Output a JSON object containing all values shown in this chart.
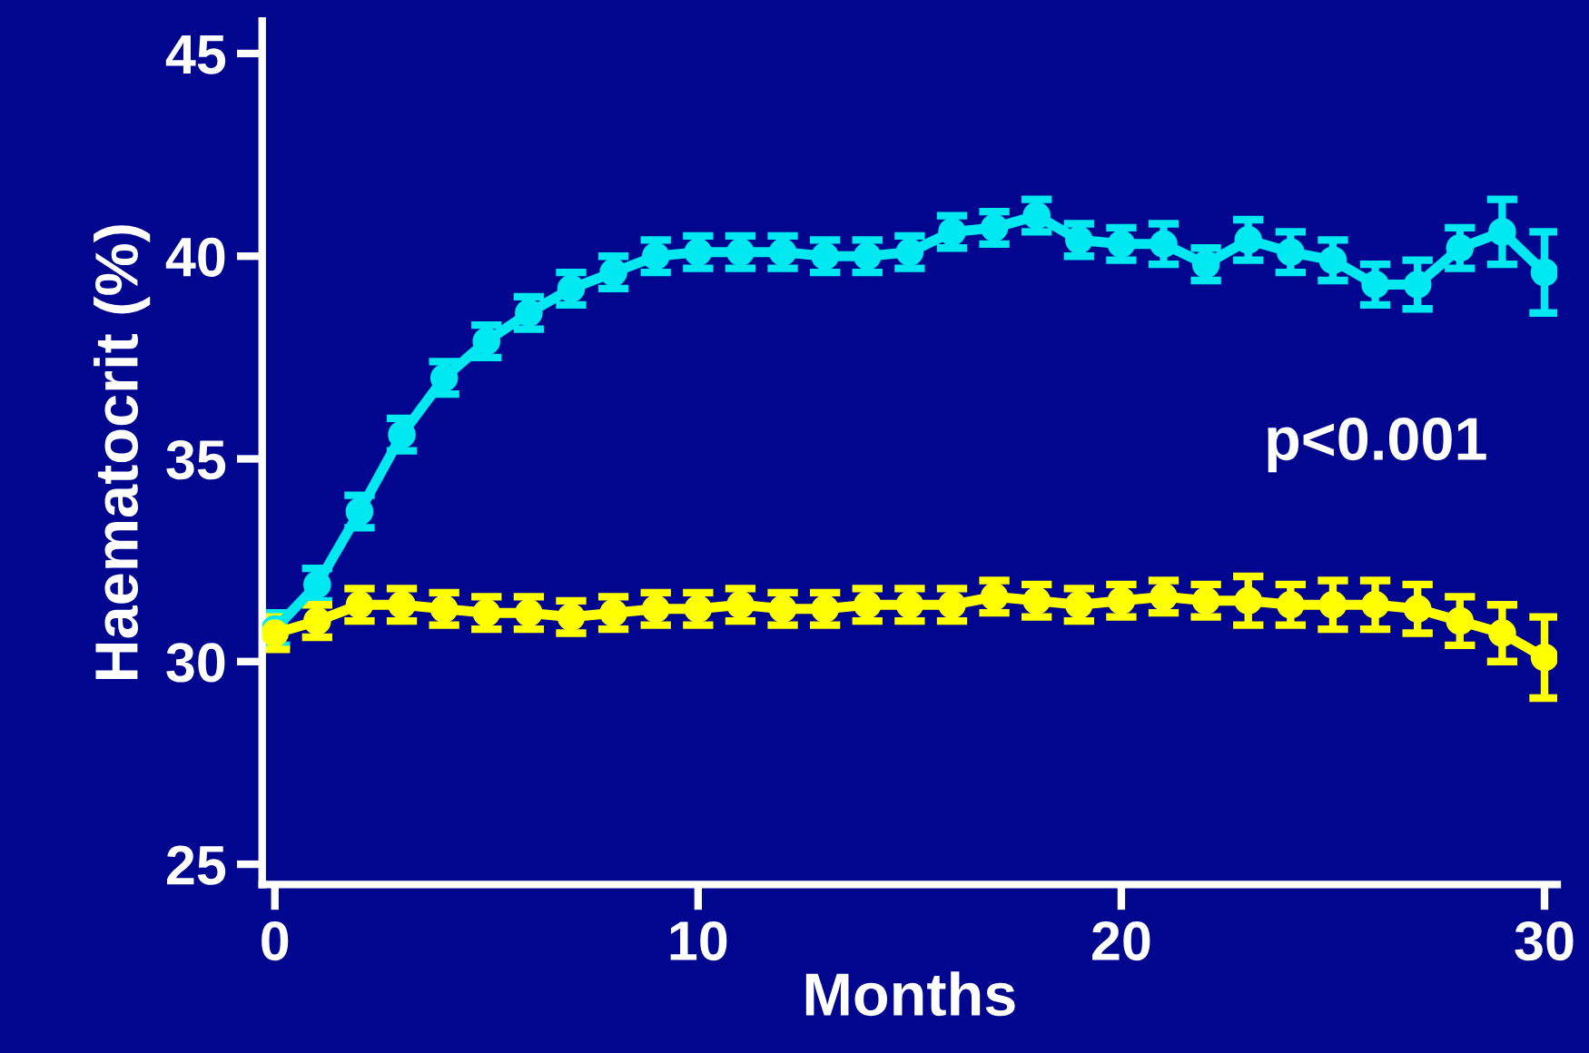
{
  "chart_data": {
    "type": "line",
    "xlabel": "Months",
    "ylabel": "Haematocrit (%)",
    "xlim": [
      -0.3,
      30.3
    ],
    "ylim": [
      24.5,
      45.8
    ],
    "xticks": [
      0,
      10,
      20,
      30
    ],
    "yticks": [
      25,
      30,
      35,
      40,
      45
    ],
    "grid": false,
    "legend": false,
    "marker": "circle",
    "line_style": "solid",
    "annotations": [
      "p<0.001"
    ],
    "series": [
      {
        "color": "#00e8f0",
        "x": [
          0,
          1,
          2,
          3,
          4,
          5,
          6,
          7,
          8,
          9,
          10,
          11,
          12,
          13,
          14,
          15,
          16,
          17,
          18,
          19,
          20,
          21,
          22,
          23,
          24,
          25,
          26,
          27,
          28,
          29,
          30
        ],
        "values": [
          30.8,
          31.9,
          33.7,
          35.6,
          37.0,
          37.9,
          38.6,
          39.2,
          39.6,
          40.0,
          40.1,
          40.1,
          40.1,
          40.0,
          40.0,
          40.1,
          40.6,
          40.7,
          41.0,
          40.4,
          40.3,
          40.3,
          39.8,
          40.4,
          40.1,
          39.9,
          39.3,
          39.3,
          40.2,
          40.6,
          39.6
        ],
        "errors": [
          0.4,
          0.4,
          0.4,
          0.4,
          0.4,
          0.4,
          0.4,
          0.4,
          0.4,
          0.4,
          0.4,
          0.4,
          0.4,
          0.4,
          0.4,
          0.4,
          0.4,
          0.4,
          0.4,
          0.4,
          0.4,
          0.5,
          0.4,
          0.5,
          0.5,
          0.5,
          0.5,
          0.6,
          0.5,
          0.8,
          1.0
        ]
      },
      {
        "color": "#ffff00",
        "x": [
          0,
          1,
          2,
          3,
          4,
          5,
          6,
          7,
          8,
          9,
          10,
          11,
          12,
          13,
          14,
          15,
          16,
          17,
          18,
          19,
          20,
          21,
          22,
          23,
          24,
          25,
          26,
          27,
          28,
          29,
          30
        ],
        "values": [
          30.7,
          31.0,
          31.4,
          31.4,
          31.3,
          31.2,
          31.2,
          31.1,
          31.2,
          31.3,
          31.3,
          31.4,
          31.3,
          31.3,
          31.4,
          31.4,
          31.4,
          31.6,
          31.5,
          31.4,
          31.5,
          31.6,
          31.5,
          31.5,
          31.4,
          31.4,
          31.4,
          31.3,
          31.0,
          30.7,
          30.1
        ],
        "errors": [
          0.4,
          0.4,
          0.4,
          0.4,
          0.4,
          0.4,
          0.4,
          0.4,
          0.4,
          0.4,
          0.4,
          0.4,
          0.4,
          0.4,
          0.4,
          0.4,
          0.4,
          0.4,
          0.4,
          0.4,
          0.4,
          0.4,
          0.4,
          0.6,
          0.5,
          0.6,
          0.6,
          0.6,
          0.6,
          0.7,
          1.0
        ]
      }
    ]
  }
}
